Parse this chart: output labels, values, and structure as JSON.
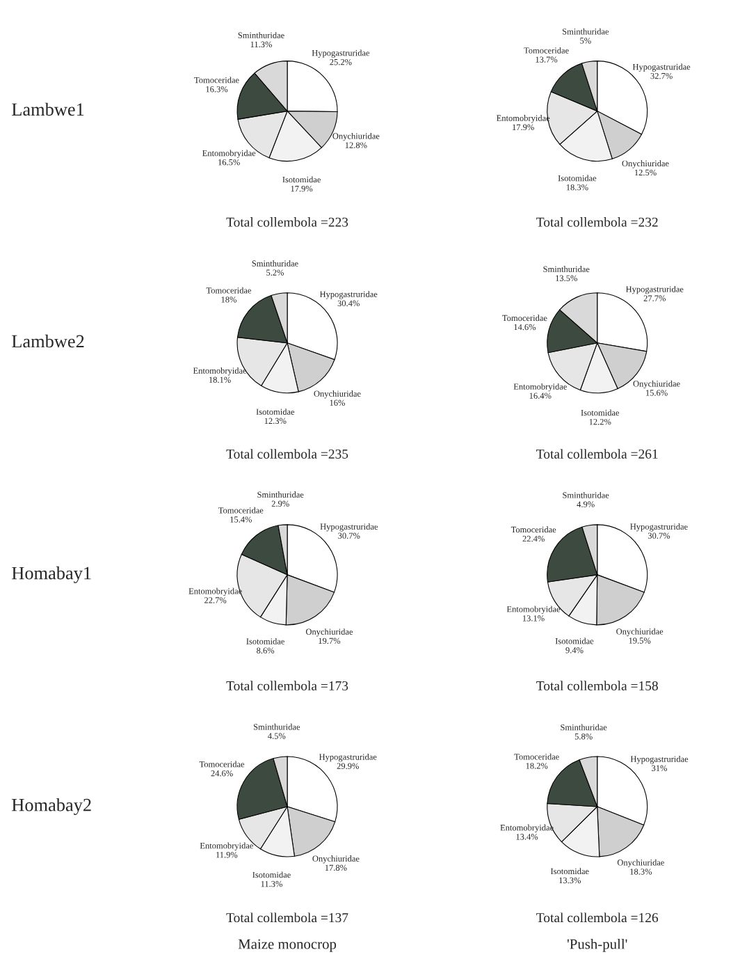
{
  "chart_data": [
    {
      "type": "pie",
      "ylabel": "Lambwe1",
      "xlabel": "Total collembola =223",
      "categories": [
        "Hypogastruridae",
        "Onychiuridae",
        "Isotomidae",
        "Entomobryidae",
        "Tomoceridae",
        "Sminthuridae"
      ],
      "values": [
        25.2,
        12.8,
        17.9,
        16.5,
        16.3,
        11.3
      ],
      "value_labels": [
        "25.2%",
        "12.8%",
        "17.9%",
        "16.5%",
        "16.3%",
        "11.3%"
      ],
      "colors": [
        "#ffffff",
        "#cfcfcf",
        "#f2f2f2",
        "#e6e6e6",
        "#3c4a40",
        "#d9d9d9"
      ]
    },
    {
      "type": "pie",
      "xlabel": "Total collembola =232",
      "categories": [
        "Hypogastruridae",
        "Onychiuridae",
        "Isotomidae",
        "Entomobryidae",
        "Tomoceridae",
        "Sminthuridae"
      ],
      "values": [
        32.7,
        12.5,
        18.3,
        17.9,
        13.7,
        5
      ],
      "value_labels": [
        "32.7%",
        "12.5%",
        "18.3%",
        "17.9%",
        "13.7%",
        "5%"
      ],
      "colors": [
        "#ffffff",
        "#cfcfcf",
        "#f2f2f2",
        "#e6e6e6",
        "#3c4a40",
        "#d9d9d9"
      ]
    },
    {
      "type": "pie",
      "ylabel": "Lambwe2",
      "xlabel": "Total collembola =235",
      "categories": [
        "Hypogastruridae",
        "Onychiuridae",
        "Isotomidae",
        "Entomobryidae",
        "Tomoceridae",
        "Sminthuridae"
      ],
      "values": [
        30.4,
        16,
        12.3,
        18.1,
        18.0,
        5.2
      ],
      "value_labels": [
        "30.4%",
        "16%",
        "12.3%",
        "18.1%",
        "18%",
        "5.2%"
      ],
      "colors": [
        "#ffffff",
        "#cfcfcf",
        "#f2f2f2",
        "#e6e6e6",
        "#3c4a40",
        "#d9d9d9"
      ]
    },
    {
      "type": "pie",
      "xlabel": "Total collembola =261",
      "categories": [
        "Hypogastruridae",
        "Onychiuridae",
        "Isotomidae",
        "Entomobryidae",
        "Tomoceridae",
        "Sminthuridae"
      ],
      "values": [
        27.7,
        15.6,
        12.2,
        16.4,
        14.6,
        13.5
      ],
      "value_labels": [
        "27.7%",
        "15.6%",
        "12.2%",
        "16.4%",
        "14.6%",
        "13.5%"
      ],
      "colors": [
        "#ffffff",
        "#cfcfcf",
        "#f2f2f2",
        "#e6e6e6",
        "#3c4a40",
        "#d9d9d9"
      ]
    },
    {
      "type": "pie",
      "ylabel": "Homabay1",
      "xlabel": "Total collembola =173",
      "categories": [
        "Hypogastruridae",
        "Onychiuridae",
        "Isotomidae",
        "Entomobryidae",
        "Tomoceridae",
        "Sminthuridae"
      ],
      "values": [
        30.7,
        19.7,
        8.6,
        22.7,
        15.4,
        2.9
      ],
      "value_labels": [
        "30.7%",
        "19.7%",
        "8.6%",
        "22.7%",
        "15.4%",
        "2.9%"
      ],
      "colors": [
        "#ffffff",
        "#cfcfcf",
        "#f2f2f2",
        "#e6e6e6",
        "#3c4a40",
        "#d9d9d9"
      ]
    },
    {
      "type": "pie",
      "xlabel": "Total collembola =158",
      "categories": [
        "Hypogastruridae",
        "Onychiuridae",
        "Isotomidae",
        "Entomobryidae",
        "Tomoceridae",
        "Sminthuridae"
      ],
      "values": [
        30.7,
        19.5,
        9.4,
        13.1,
        22.4,
        4.9
      ],
      "value_labels": [
        "30.7%",
        "19.5%",
        "9.4%",
        "13.1%",
        "22.4%",
        "4.9%"
      ],
      "colors": [
        "#ffffff",
        "#cfcfcf",
        "#f2f2f2",
        "#e6e6e6",
        "#3c4a40",
        "#d9d9d9"
      ]
    },
    {
      "type": "pie",
      "ylabel": "Homabay2",
      "xlabel": "Total collembola =137",
      "annotations": [
        "Maize monocrop"
      ],
      "categories": [
        "Hypogastruridae",
        "Onychiuridae",
        "Isotomidae",
        "Entomobryidae",
        "Tomoceridae",
        "Sminthuridae"
      ],
      "values": [
        29.9,
        17.8,
        11.3,
        11.9,
        24.6,
        4.5
      ],
      "value_labels": [
        "29.9%",
        "17.8%",
        "11.3%",
        "11.9%",
        "24.6%",
        "4.5%"
      ],
      "colors": [
        "#ffffff",
        "#cfcfcf",
        "#f2f2f2",
        "#e6e6e6",
        "#3c4a40",
        "#d9d9d9"
      ]
    },
    {
      "type": "pie",
      "xlabel": "Total collembola =126",
      "annotations": [
        "'Push-pull'"
      ],
      "categories": [
        "Hypogastruridae",
        "Onychiuridae",
        "Isotomidae",
        "Entomobryidae",
        "Tomoceridae",
        "Sminthuridae"
      ],
      "values": [
        31,
        18.3,
        13.3,
        13.4,
        18.2,
        5.8
      ],
      "value_labels": [
        "31%",
        "18.3%",
        "13.3%",
        "13.4%",
        "18.2%",
        "5.8%"
      ],
      "colors": [
        "#ffffff",
        "#cfcfcf",
        "#f2f2f2",
        "#e6e6e6",
        "#3c4a40",
        "#d9d9d9"
      ]
    }
  ]
}
